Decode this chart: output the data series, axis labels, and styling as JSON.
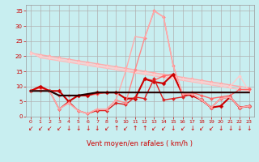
{
  "background_color": "#c8eef0",
  "grid_color": "#b0b0b0",
  "xlabel": "Vent moyen/en rafales ( km/h )",
  "xlabel_color": "#cc0000",
  "tick_color": "#cc0000",
  "x_ticks": [
    0,
    1,
    2,
    3,
    4,
    5,
    6,
    7,
    8,
    9,
    10,
    11,
    12,
    13,
    14,
    15,
    16,
    17,
    18,
    19,
    20,
    21,
    22,
    23
  ],
  "y_ticks": [
    0,
    5,
    10,
    15,
    20,
    25,
    30,
    35
  ],
  "ylim": [
    0,
    37
  ],
  "xlim": [
    -0.5,
    23.5
  ],
  "series": [
    {
      "y": [
        21.5,
        19.5,
        19.0,
        18.5,
        18.0,
        17.5,
        17.0,
        16.5,
        16.0,
        15.5,
        15.0,
        14.5,
        14.0,
        13.5,
        13.0,
        12.5,
        12.0,
        11.5,
        11.0,
        10.5,
        10.0,
        9.5,
        9.0,
        8.5
      ],
      "color": "#ffbbbb",
      "lw": 1.0,
      "marker": null,
      "ms": 2
    },
    {
      "y": [
        21.0,
        20.5,
        20.0,
        19.5,
        19.0,
        18.5,
        18.0,
        17.5,
        17.0,
        16.5,
        16.0,
        15.5,
        15.0,
        14.5,
        14.0,
        13.5,
        13.0,
        12.5,
        12.0,
        11.5,
        11.0,
        10.5,
        10.0,
        9.5
      ],
      "color": "#ffaaaa",
      "lw": 1.0,
      "marker": "D",
      "ms": 2
    },
    {
      "y": [
        21.0,
        20.0,
        19.5,
        19.0,
        18.5,
        18.0,
        17.5,
        17.0,
        16.5,
        16.0,
        15.5,
        15.0,
        14.5,
        14.0,
        13.5,
        13.0,
        12.5,
        12.0,
        11.5,
        11.0,
        10.5,
        10.0,
        13.5,
        8.5
      ],
      "color": "#ffcccc",
      "lw": 1.0,
      "marker": "D",
      "ms": 2
    },
    {
      "y": [
        8.5,
        9.5,
        8.5,
        7.0,
        7.0,
        7.0,
        7.0,
        7.5,
        8.0,
        8.0,
        6.0,
        6.0,
        12.5,
        12.0,
        13.5,
        14.0,
        7.0,
        8.0,
        7.0,
        6.0,
        6.5,
        7.0,
        9.0,
        9.0
      ],
      "color": "#ff6666",
      "lw": 1.0,
      "marker": "D",
      "ms": 2
    },
    {
      "y": [
        8.5,
        10.0,
        8.5,
        8.5,
        5.0,
        7.0,
        7.0,
        8.0,
        8.0,
        8.0,
        6.0,
        6.0,
        12.5,
        11.5,
        11.0,
        14.0,
        7.5,
        7.0,
        5.5,
        3.0,
        3.5,
        6.5,
        3.0,
        3.5
      ],
      "color": "#cc0000",
      "lw": 1.5,
      "marker": "D",
      "ms": 2.5
    },
    {
      "y": [
        8.5,
        8.5,
        8.5,
        2.5,
        5.0,
        2.0,
        1.0,
        2.0,
        2.0,
        4.5,
        4.0,
        6.5,
        6.0,
        12.5,
        5.5,
        6.0,
        6.5,
        7.5,
        5.5,
        3.0,
        6.0,
        6.5,
        3.0,
        3.5
      ],
      "color": "#dd2222",
      "lw": 1.0,
      "marker": "D",
      "ms": 2
    },
    {
      "y": [
        8.5,
        8.5,
        8.5,
        2.5,
        4.5,
        2.0,
        1.0,
        2.5,
        2.5,
        5.5,
        4.5,
        15.5,
        26.0,
        35.0,
        33.0,
        17.0,
        7.5,
        7.5,
        5.5,
        3.0,
        6.0,
        6.5,
        3.0,
        3.5
      ],
      "color": "#ff8888",
      "lw": 1.0,
      "marker": "D",
      "ms": 2
    },
    {
      "y": [
        8.5,
        8.5,
        8.5,
        2.5,
        4.5,
        2.0,
        1.0,
        2.5,
        2.5,
        5.5,
        15.0,
        26.5,
        26.0,
        35.0,
        33.0,
        17.0,
        7.5,
        7.5,
        5.5,
        3.0,
        6.0,
        6.5,
        3.0,
        3.5
      ],
      "color": "#ffaaaa",
      "lw": 1.0,
      "marker": null,
      "ms": 2
    },
    {
      "y": [
        8.5,
        8.5,
        8.5,
        7.0,
        7.0,
        7.0,
        7.5,
        8.0,
        8.0,
        8.0,
        8.0,
        8.0,
        8.0,
        8.0,
        8.0,
        8.0,
        8.0,
        8.0,
        8.0,
        8.0,
        8.0,
        8.0,
        8.0,
        8.0
      ],
      "color": "#220000",
      "lw": 1.5,
      "marker": null,
      "ms": 2
    }
  ],
  "arrow_symbols": [
    "↙",
    "↙",
    "↙",
    "↙",
    "↓",
    "↓",
    "↓",
    "↓",
    "↙",
    "↑",
    "↙",
    "↑",
    "↑",
    "↙",
    "↙",
    "↓",
    "↙",
    "↓",
    "↙",
    "↙",
    "↓",
    "↓",
    "↓",
    "↓"
  ],
  "arrow_fontsize": 5.5
}
